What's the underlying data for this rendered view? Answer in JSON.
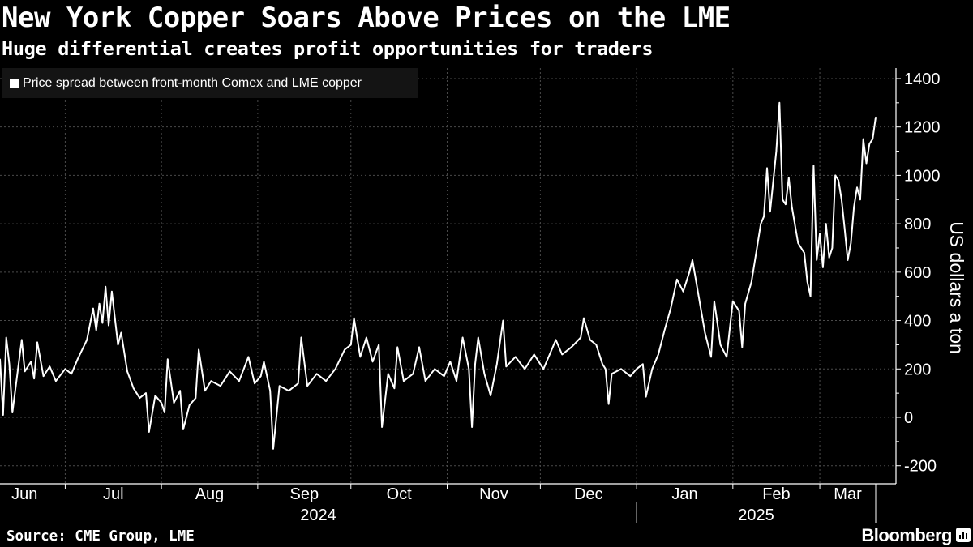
{
  "title": "New York Copper Soars Above Prices on the LME",
  "subtitle": "Huge differential creates profit opportunities for traders",
  "source": "Source: CME Group, LME",
  "brand": "Bloomberg",
  "colors": {
    "background": "#000000",
    "line": "#ffffff",
    "grid": "#4a4a4a",
    "legend_bg": "#141414"
  },
  "chart_data": {
    "type": "line",
    "title": "New York Copper Soars Above Prices on the LME",
    "subtitle": "Huge differential creates profit opportunities for traders",
    "xlabel": "",
    "ylabel": "US dollars a ton",
    "ylim": [
      -250,
      1480
    ],
    "yticks": [
      -200,
      0,
      200,
      400,
      600,
      800,
      1000,
      1200,
      1400
    ],
    "ytick_labels": [
      "-200",
      "0",
      "200",
      "400",
      "600",
      "800",
      "1000",
      "1200",
      "1400"
    ],
    "xlim": [
      "2024-06-10",
      "2025-03-19"
    ],
    "month_labels": [
      {
        "label": "Jun",
        "month": "2024-06"
      },
      {
        "label": "Jul",
        "month": "2024-07"
      },
      {
        "label": "Aug",
        "month": "2024-08"
      },
      {
        "label": "Sep",
        "month": "2024-09"
      },
      {
        "label": "Oct",
        "month": "2024-10"
      },
      {
        "label": "Nov",
        "month": "2024-11"
      },
      {
        "label": "Dec",
        "month": "2024-12"
      },
      {
        "label": "Jan",
        "month": "2025-01"
      },
      {
        "label": "Feb",
        "month": "2025-02"
      },
      {
        "label": "Mar",
        "month": "2025-03"
      }
    ],
    "year_labels": [
      {
        "label": "2024"
      },
      {
        "label": "2025"
      }
    ],
    "grid": true,
    "legend": "top-left",
    "y_axis_side": "right",
    "series": [
      {
        "name": "Price spread between front-month Comex and LME copper",
        "color": "#ffffff",
        "x": [
          "2024-06-10",
          "2024-06-11",
          "2024-06-12",
          "2024-06-13",
          "2024-06-14",
          "2024-06-17",
          "2024-06-18",
          "2024-06-20",
          "2024-06-21",
          "2024-06-22",
          "2024-06-24",
          "2024-06-26",
          "2024-06-28",
          "2024-07-01",
          "2024-07-03",
          "2024-07-05",
          "2024-07-08",
          "2024-07-10",
          "2024-07-11",
          "2024-07-12",
          "2024-07-13",
          "2024-07-14",
          "2024-07-15",
          "2024-07-16",
          "2024-07-18",
          "2024-07-19",
          "2024-07-21",
          "2024-07-23",
          "2024-07-25",
          "2024-07-27",
          "2024-07-28",
          "2024-07-30",
          "2024-08-01",
          "2024-08-02",
          "2024-08-03",
          "2024-08-05",
          "2024-08-07",
          "2024-08-08",
          "2024-08-10",
          "2024-08-12",
          "2024-08-13",
          "2024-08-15",
          "2024-08-17",
          "2024-08-20",
          "2024-08-23",
          "2024-08-26",
          "2024-08-29",
          "2024-08-31",
          "2024-09-02",
          "2024-09-03",
          "2024-09-05",
          "2024-09-06",
          "2024-09-08",
          "2024-09-11",
          "2024-09-14",
          "2024-09-15",
          "2024-09-17",
          "2024-09-20",
          "2024-09-23",
          "2024-09-26",
          "2024-09-29",
          "2024-10-01",
          "2024-10-02",
          "2024-10-04",
          "2024-10-06",
          "2024-10-08",
          "2024-10-10",
          "2024-10-11",
          "2024-10-13",
          "2024-10-15",
          "2024-10-16",
          "2024-10-18",
          "2024-10-21",
          "2024-10-23",
          "2024-10-25",
          "2024-10-28",
          "2024-10-31",
          "2024-11-02",
          "2024-11-04",
          "2024-11-05",
          "2024-11-06",
          "2024-11-08",
          "2024-11-09",
          "2024-11-10",
          "2024-11-11",
          "2024-11-13",
          "2024-11-15",
          "2024-11-17",
          "2024-11-19",
          "2024-11-20",
          "2024-11-23",
          "2024-11-26",
          "2024-11-29",
          "2024-12-02",
          "2024-12-04",
          "2024-12-06",
          "2024-12-08",
          "2024-12-11",
          "2024-12-14",
          "2024-12-15",
          "2024-12-17",
          "2024-12-19",
          "2024-12-21",
          "2024-12-22",
          "2024-12-23",
          "2024-12-24",
          "2024-12-27",
          "2024-12-30",
          "2025-01-01",
          "2025-01-03",
          "2025-01-04",
          "2025-01-06",
          "2025-01-08",
          "2025-01-10",
          "2025-01-12",
          "2025-01-14",
          "2025-01-16",
          "2025-01-18",
          "2025-01-19",
          "2025-01-21",
          "2025-01-23",
          "2025-01-25",
          "2025-01-26",
          "2025-01-28",
          "2025-01-30",
          "2025-02-01",
          "2025-02-03",
          "2025-02-04",
          "2025-02-05",
          "2025-02-07",
          "2025-02-09",
          "2025-02-10",
          "2025-02-11",
          "2025-02-12",
          "2025-02-13",
          "2025-02-15",
          "2025-02-16",
          "2025-02-17",
          "2025-02-18",
          "2025-02-19",
          "2025-02-20",
          "2025-02-22",
          "2025-02-24",
          "2025-02-25",
          "2025-02-26",
          "2025-02-27",
          "2025-02-28",
          "2025-03-01",
          "2025-03-02",
          "2025-03-03",
          "2025-03-04",
          "2025-03-05",
          "2025-03-06",
          "2025-03-07",
          "2025-03-08",
          "2025-03-09",
          "2025-03-10",
          "2025-03-11",
          "2025-03-12",
          "2025-03-13",
          "2025-03-14",
          "2025-03-15",
          "2025-03-16",
          "2025-03-17",
          "2025-03-18",
          "2025-03-19"
        ],
        "values": [
          240,
          10,
          330,
          220,
          20,
          320,
          190,
          230,
          160,
          310,
          170,
          210,
          150,
          200,
          180,
          240,
          320,
          450,
          360,
          470,
          390,
          540,
          380,
          520,
          300,
          350,
          190,
          120,
          80,
          100,
          -60,
          90,
          60,
          20,
          240,
          60,
          110,
          -50,
          50,
          80,
          280,
          110,
          150,
          130,
          190,
          150,
          250,
          140,
          170,
          230,
          110,
          -130,
          130,
          110,
          140,
          330,
          130,
          180,
          150,
          200,
          280,
          300,
          410,
          250,
          330,
          230,
          300,
          -40,
          180,
          120,
          290,
          150,
          180,
          290,
          150,
          200,
          170,
          230,
          150,
          240,
          330,
          200,
          -40,
          220,
          330,
          180,
          90,
          220,
          400,
          210,
          250,
          200,
          260,
          200,
          260,
          320,
          260,
          290,
          330,
          410,
          320,
          300,
          220,
          200,
          55,
          180,
          200,
          170,
          200,
          220,
          85,
          200,
          260,
          360,
          450,
          570,
          520,
          600,
          650,
          500,
          350,
          250,
          480,
          300,
          250,
          480,
          440,
          290,
          470,
          560,
          720,
          800,
          830,
          1030,
          850,
          1100,
          1300,
          900,
          880,
          990,
          870,
          720,
          680,
          560,
          500,
          1040,
          650,
          760,
          620,
          800,
          660,
          700,
          1000,
          980,
          900,
          780,
          650,
          720,
          870,
          950,
          900,
          1150,
          1050,
          1130,
          1150,
          1240
        ]
      }
    ]
  }
}
